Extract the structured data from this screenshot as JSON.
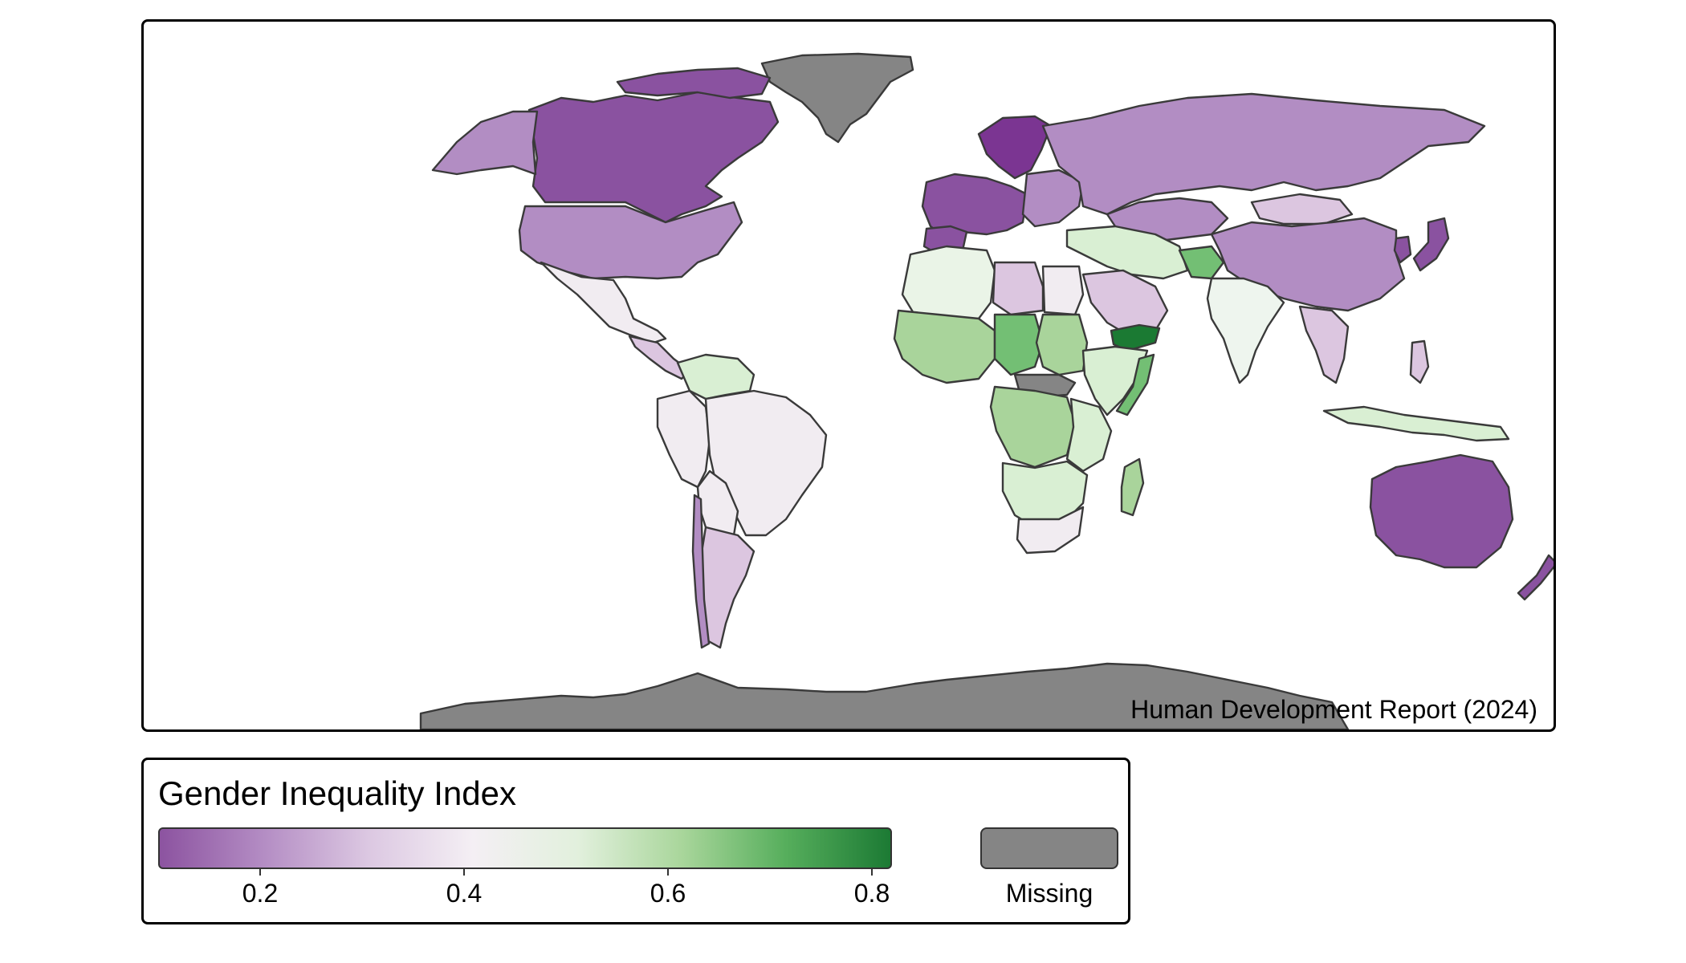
{
  "source_note": "Human Development Report (2024)",
  "legend": {
    "title": "Gender Inequality Index",
    "ticks": [
      "0.2",
      "0.4",
      "0.6",
      "0.8"
    ],
    "missing_label": "Missing",
    "gradient": [
      "#8c53a0",
      "#b48dc4",
      "#dcc8e2",
      "#f4eff4",
      "#e2f0dd",
      "#a9d69b",
      "#56ae5c",
      "#1c7a34"
    ]
  },
  "colors": {
    "missing": "#858585",
    "low_dark_purple": "#8a52a0",
    "mid_purple": "#b28dc3",
    "light_purple": "#dcc6e0",
    "near_white": "#f1ecf1",
    "light_green": "#d9efd3",
    "mid_green": "#a9d49b",
    "green": "#73bf74",
    "dark_green": "#1b7a33",
    "border": "#3a3a3a"
  }
}
